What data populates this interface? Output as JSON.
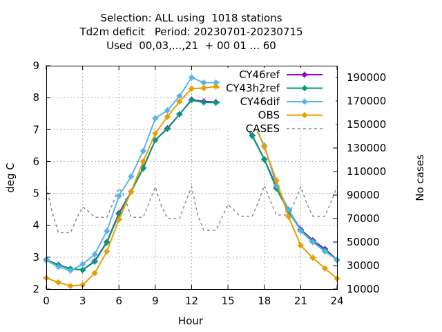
{
  "chart_data": {
    "type": "line",
    "title_lines": [
      "Selection: ALL using  1018 stations",
      "Td2m deficit   Period: 20230701-20230715",
      "Used  00,03,...,21  + 00 01 ... 60"
    ],
    "xlabel": "Hour",
    "ylabel": "deg C",
    "y2label": "No cases",
    "xlim": [
      0,
      24
    ],
    "ylim": [
      2,
      9
    ],
    "y2lim": [
      10000,
      200000
    ],
    "xticks": [
      "0",
      "3",
      "6",
      "9",
      "12",
      "15",
      "18",
      "21",
      "24"
    ],
    "yticks": [
      "2",
      "3",
      "4",
      "5",
      "6",
      "7",
      "8",
      "9"
    ],
    "y2ticks": [
      "10000",
      "30000",
      "50000",
      "70000",
      "90000",
      "110000",
      "130000",
      "150000",
      "170000",
      "190000"
    ],
    "grid": true,
    "legend_position": "top-right",
    "x": [
      0,
      1,
      2,
      3,
      4,
      5,
      6,
      7,
      8,
      9,
      10,
      11,
      12,
      13,
      14,
      15,
      16,
      17,
      18,
      19,
      20,
      21,
      22,
      23,
      24
    ],
    "series": [
      {
        "name": "CY46ref",
        "color": "#9400d3",
        "marker": "plus-circle",
        "axis": "y",
        "values": [
          2.92,
          2.76,
          2.64,
          2.6,
          2.88,
          3.48,
          4.38,
          5.05,
          5.8,
          6.67,
          7.04,
          7.48,
          7.94,
          7.88,
          7.86,
          7.86,
          7.35,
          6.82,
          6.07,
          5.2,
          4.47,
          3.87,
          3.53,
          3.26,
          2.92
        ]
      },
      {
        "name": "CY43h2ref",
        "color": "#009e73",
        "marker": "plus-circle",
        "axis": "y",
        "values": [
          2.92,
          2.76,
          2.64,
          2.6,
          2.86,
          3.46,
          4.34,
          5.05,
          5.78,
          6.67,
          7.02,
          7.48,
          7.92,
          7.85,
          7.84,
          7.86,
          7.3,
          6.8,
          6.06,
          5.15,
          4.42,
          3.85,
          3.5,
          3.22,
          2.91
        ]
      },
      {
        "name": "CY46dif",
        "color": "#56b4e9",
        "marker": "plus-circle",
        "axis": "y",
        "values": [
          2.9,
          2.7,
          2.58,
          2.78,
          3.09,
          3.82,
          4.92,
          5.53,
          6.33,
          7.35,
          7.6,
          8.05,
          8.63,
          8.47,
          8.47,
          8.52,
          7.9,
          7.25,
          6.5,
          5.25,
          4.5,
          3.82,
          3.47,
          3.18,
          2.92
        ]
      },
      {
        "name": "OBS",
        "color": "#e69f00",
        "marker": "plus-circle",
        "axis": "y",
        "values": [
          2.35,
          2.21,
          2.1,
          2.13,
          2.5,
          3.18,
          4.18,
          5.05,
          6.0,
          6.88,
          7.4,
          7.88,
          8.28,
          8.3,
          8.35,
          8.2,
          7.88,
          7.35,
          6.45,
          5.4,
          4.27,
          3.37,
          2.98,
          2.65,
          2.33
        ]
      },
      {
        "name": "CASES",
        "color": "#888888",
        "marker": "none",
        "dash": true,
        "axis": "y2",
        "x": [
          0,
          0.5,
          1,
          1.5,
          2,
          2.5,
          3,
          3.5,
          4,
          4.5,
          5,
          5.5,
          6,
          6.5,
          7,
          7.5,
          8,
          8.5,
          9,
          9.5,
          10,
          10.5,
          11,
          11.5,
          12,
          12.5,
          13,
          13.5,
          14,
          14.5,
          15,
          15.5,
          16,
          16.5,
          17,
          17.5,
          18,
          18.5,
          19,
          19.5,
          20,
          20.5,
          21,
          21.5,
          22,
          22.5,
          23,
          23.5,
          24
        ],
        "values": [
          97000,
          75000,
          58000,
          58000,
          58000,
          70000,
          80000,
          76000,
          71000,
          71000,
          71000,
          83000,
          96000,
          88000,
          71000,
          71000,
          71000,
          84000,
          97000,
          81000,
          70000,
          70000,
          70000,
          84000,
          97000,
          73000,
          60000,
          60000,
          60000,
          71000,
          82000,
          77000,
          72000,
          72000,
          72000,
          84000,
          98000,
          85000,
          73000,
          73000,
          73000,
          84000,
          97000,
          83000,
          72000,
          72000,
          72000,
          84000,
          97000
        ]
      }
    ]
  }
}
